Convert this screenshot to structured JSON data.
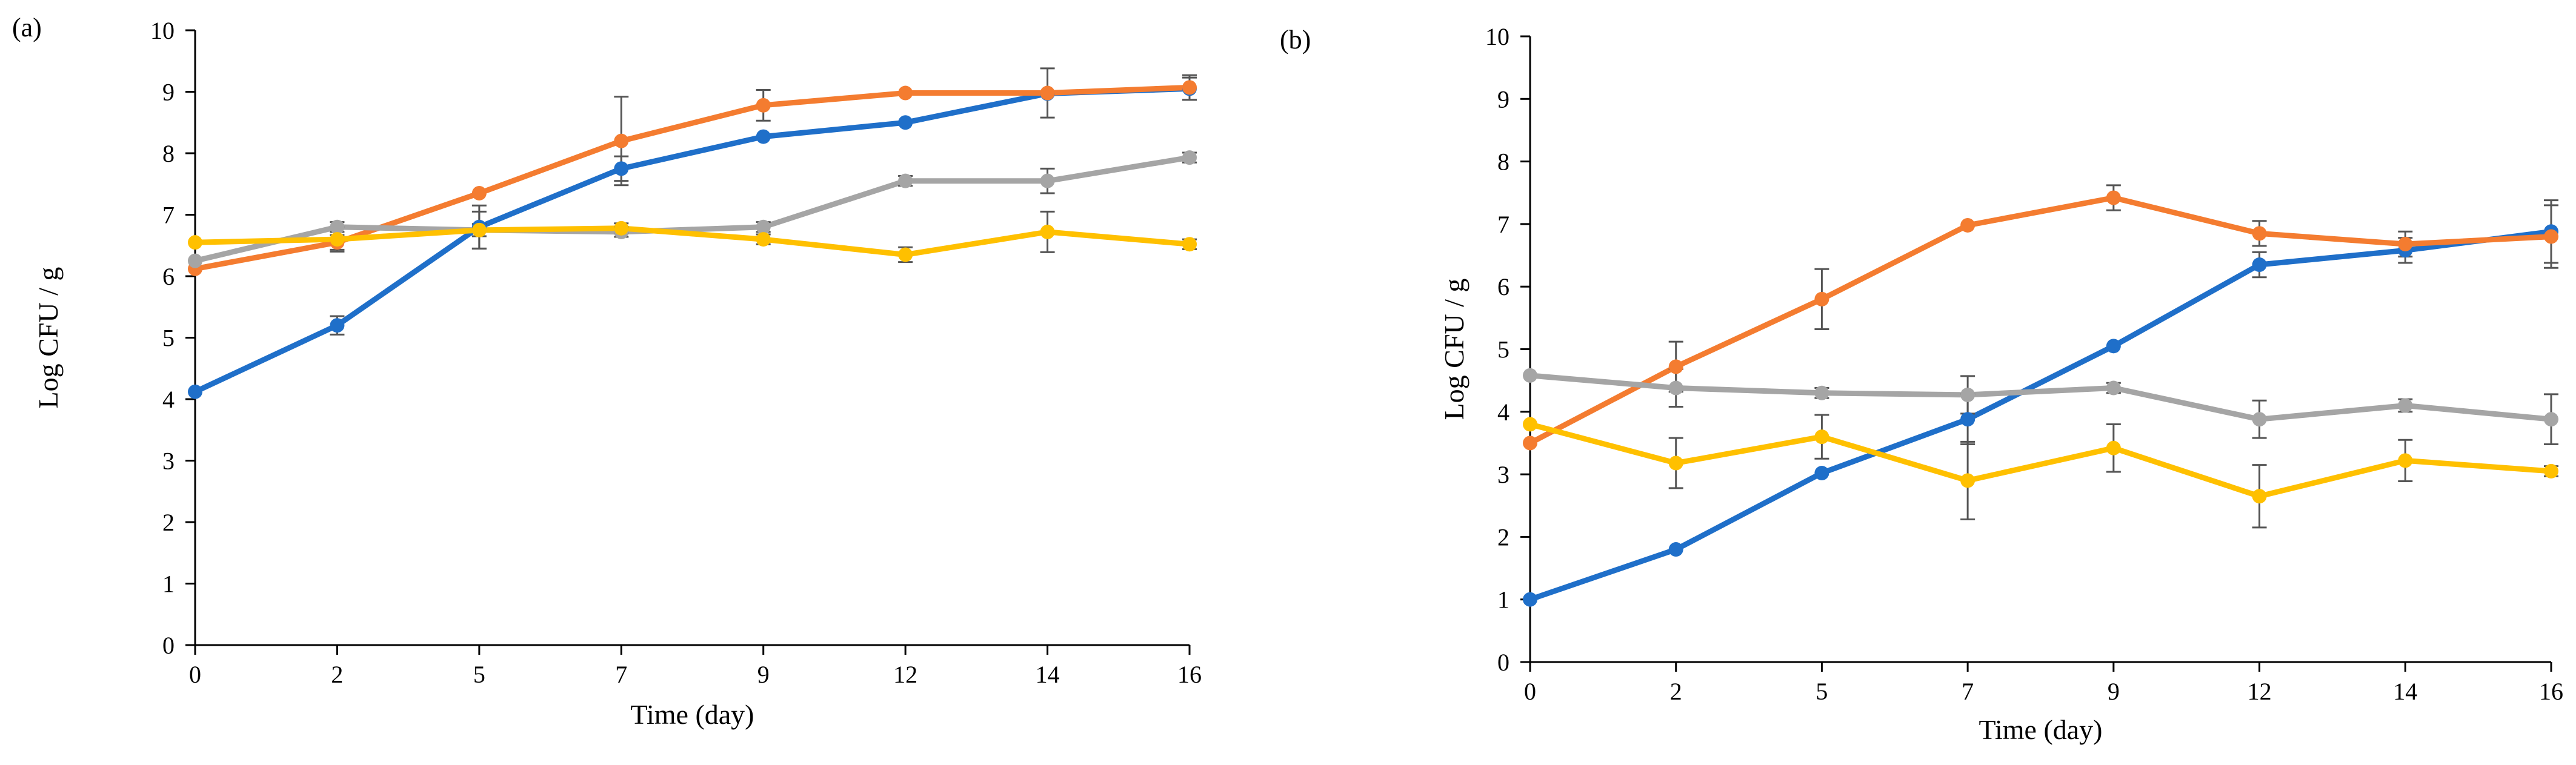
{
  "chart_data": [
    {
      "type": "line",
      "panel_label": "(a)",
      "title": "",
      "xlabel": "Time (day)",
      "ylabel": "Log CFU / g",
      "categories": [
        "0",
        "2",
        "5",
        "7",
        "9",
        "12",
        "14",
        "16"
      ],
      "ylim": [
        0,
        10
      ],
      "yticks": [
        "0",
        "1",
        "2",
        "3",
        "4",
        "5",
        "6",
        "7",
        "8",
        "9",
        "10"
      ],
      "grid": false,
      "legend": "none",
      "series": [
        {
          "name": "blue",
          "color": "#1f6fc9",
          "values": [
            4.12,
            5.2,
            6.8,
            7.75,
            8.27,
            8.5,
            8.97,
            9.05
          ],
          "errors": [
            0,
            0.15,
            0.35,
            0.2,
            0,
            0,
            0,
            0.18
          ]
        },
        {
          "name": "orange",
          "color": "#f47c30",
          "values": [
            6.12,
            6.55,
            7.35,
            8.2,
            8.78,
            8.98,
            8.98,
            9.07
          ],
          "errors": [
            0,
            0.12,
            0,
            0.72,
            0.25,
            0,
            0.4,
            0.2
          ]
        },
        {
          "name": "gray",
          "color": "#a5a5a5",
          "values": [
            6.25,
            6.8,
            6.75,
            6.72,
            6.8,
            7.55,
            7.55,
            7.93
          ],
          "errors": [
            0,
            0.08,
            0.1,
            0.08,
            0.08,
            0.08,
            0.2,
            0.08
          ]
        },
        {
          "name": "yellow",
          "color": "#ffc000",
          "values": [
            6.55,
            6.6,
            6.75,
            6.78,
            6.6,
            6.35,
            6.72,
            6.52
          ],
          "errors": [
            0,
            0.2,
            0.3,
            0.08,
            0.08,
            0.12,
            0.33,
            0.08
          ]
        }
      ]
    },
    {
      "type": "line",
      "panel_label": "(b)",
      "title": "",
      "xlabel": "Time (day)",
      "ylabel": "Log CFU / g",
      "categories": [
        "0",
        "2",
        "5",
        "7",
        "9",
        "12",
        "14",
        "16"
      ],
      "ylim": [
        0,
        10
      ],
      "yticks": [
        "0",
        "1",
        "2",
        "3",
        "4",
        "5",
        "6",
        "7",
        "8",
        "9",
        "10"
      ],
      "grid": false,
      "legend": "none",
      "series": [
        {
          "name": "blue",
          "color": "#1f6fc9",
          "values": [
            1.0,
            1.8,
            3.02,
            3.88,
            5.05,
            6.35,
            6.58,
            6.88
          ],
          "errors": [
            0,
            0,
            0,
            0.4,
            0,
            0.2,
            0.2,
            0.5
          ]
        },
        {
          "name": "orange",
          "color": "#f47c30",
          "values": [
            3.5,
            4.72,
            5.8,
            6.98,
            7.42,
            6.85,
            6.68,
            6.8
          ],
          "errors": [
            0,
            0.4,
            0.48,
            0,
            0.2,
            0.2,
            0.2,
            0.5
          ]
        },
        {
          "name": "gray",
          "color": "#a5a5a5",
          "values": [
            4.58,
            4.38,
            4.3,
            4.27,
            4.38,
            3.88,
            4.1,
            3.88
          ],
          "errors": [
            0,
            0.3,
            0.08,
            0.3,
            0.08,
            0.3,
            0.1,
            0.4
          ]
        },
        {
          "name": "yellow",
          "color": "#ffc000",
          "values": [
            3.8,
            3.18,
            3.6,
            2.9,
            3.42,
            2.65,
            3.22,
            3.05
          ],
          "errors": [
            0,
            0.4,
            0.35,
            0.62,
            0.38,
            0.5,
            0.33,
            0.08
          ]
        }
      ]
    }
  ]
}
